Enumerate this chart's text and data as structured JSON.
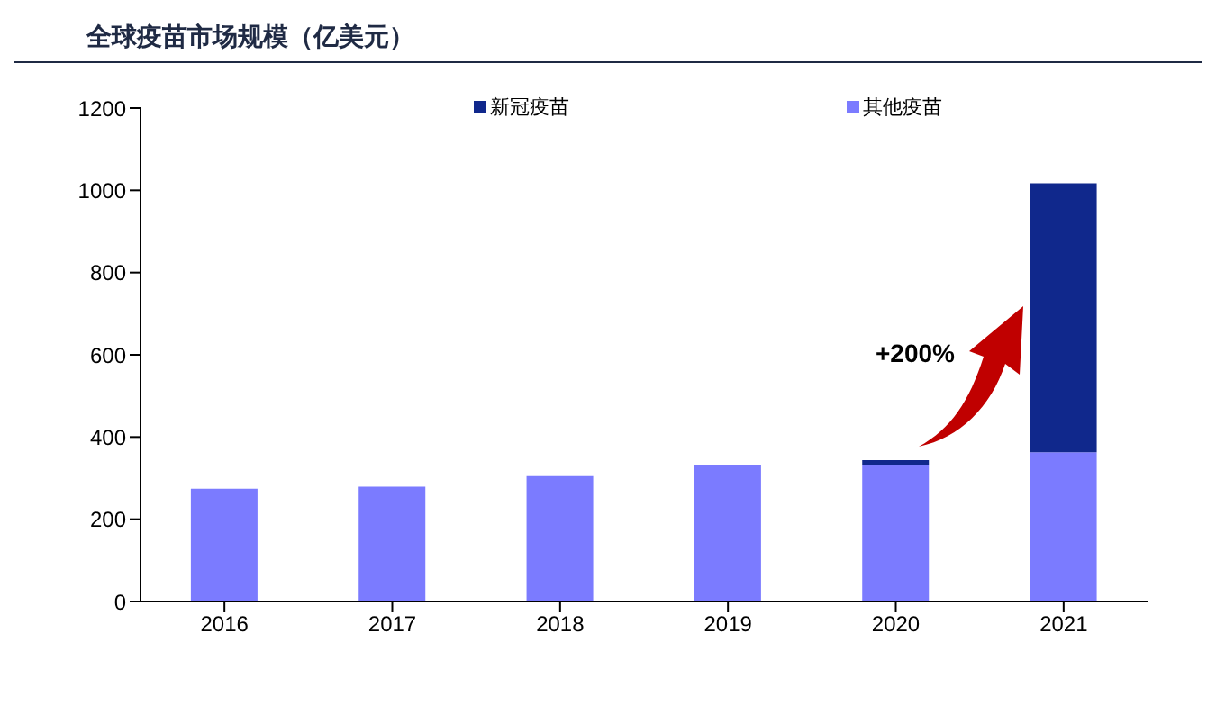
{
  "chart_data": {
    "type": "bar",
    "title": "全球疫苗市场规模（亿美元）",
    "categories": [
      "2016",
      "2017",
      "2018",
      "2019",
      "2020",
      "2021"
    ],
    "stacked": true,
    "series": [
      {
        "name": "其他疫苗",
        "color": "#7b7bff",
        "values": [
          274,
          279,
          305,
          333,
          333,
          363
        ]
      },
      {
        "name": "新冠疫苗",
        "color": "#10288c",
        "values": [
          null,
          null,
          null,
          null,
          11,
          654
        ]
      }
    ],
    "ylim": [
      0,
      1200
    ],
    "yticks": [
      0,
      200,
      400,
      600,
      800,
      1000,
      1200
    ],
    "grid": false,
    "legend": "top",
    "annotations": [
      "+200%"
    ]
  }
}
